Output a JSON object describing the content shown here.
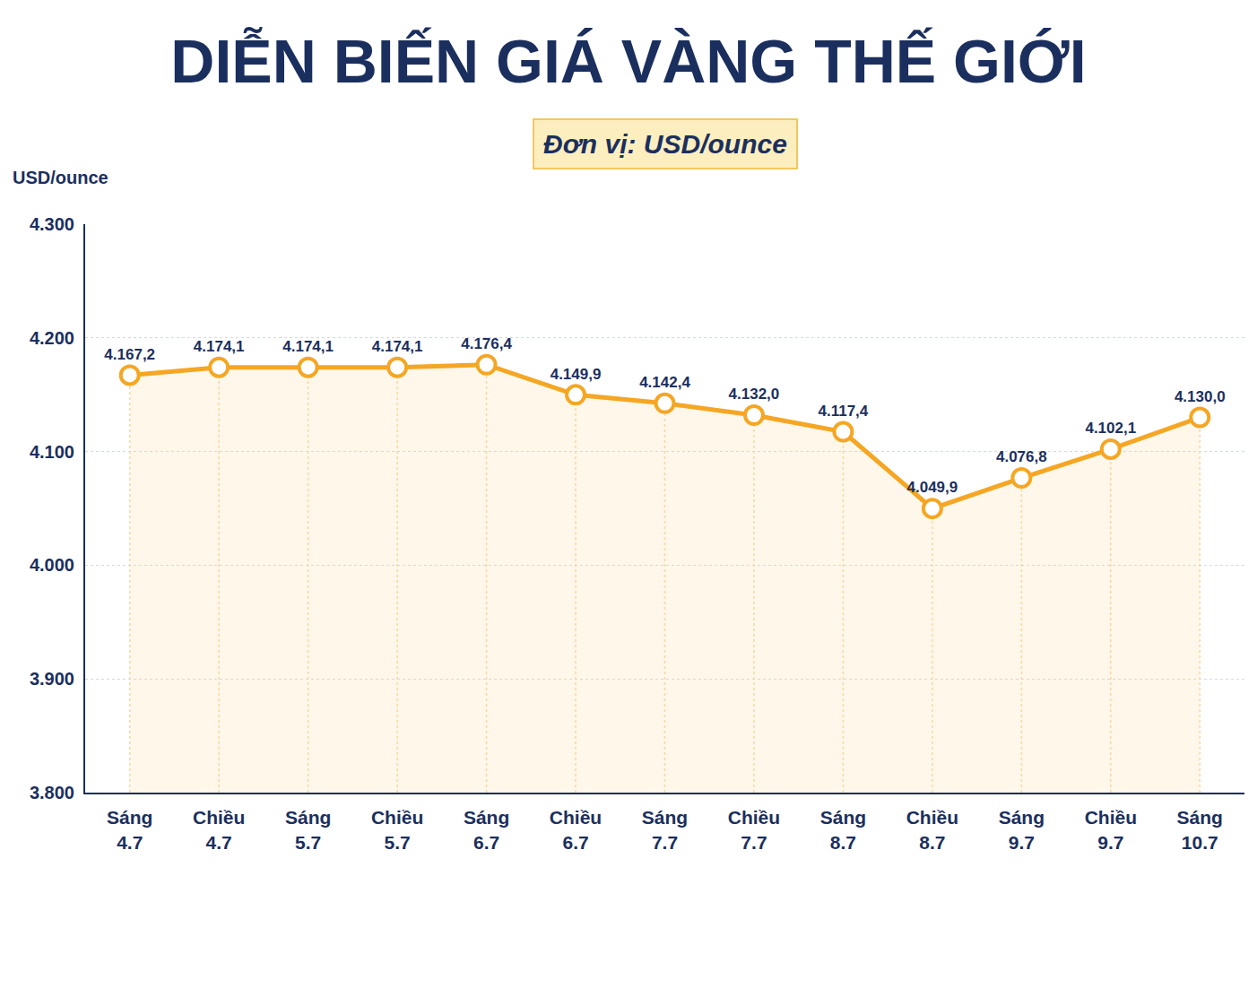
{
  "chart_data": {
    "type": "line",
    "title": "DIỄN BIẾN GIÁ VÀNG THẾ GIỚI",
    "subtitle": "Đơn vị: USD/ounce",
    "ylabel": "USD/ounce",
    "categories": [
      "Sáng 4.7",
      "Chiều 4.7",
      "Sáng 5.7",
      "Chiều 5.7",
      "Sáng 6.7",
      "Chiều 6.7",
      "Sáng 7.7",
      "Chiều 7.7",
      "Sáng 8.7",
      "Chiều 8.7",
      "Sáng 9.7",
      "Chiều 9.7",
      "Sáng 10.7"
    ],
    "values": [
      4167.2,
      4174.1,
      4174.1,
      4174.1,
      4176.4,
      4149.9,
      4142.4,
      4132.0,
      4117.4,
      4049.9,
      4076.8,
      4102.1,
      4130.0
    ],
    "value_labels": [
      "4.167,2",
      "4.174,1",
      "4.174,1",
      "4.174,1",
      "4.176,4",
      "4.149,9",
      "4.142,4",
      "4.132,0",
      "4.117,4",
      "4.049,9",
      "4.076,8",
      "4.102,1",
      "4.130,0"
    ],
    "color": "#f5a623",
    "marker": "circle",
    "line_style": "solid",
    "ylim": [
      3800,
      4300
    ],
    "yticks": [
      {
        "value": 3800,
        "label": "3.800"
      },
      {
        "value": 3900,
        "label": "3.900"
      },
      {
        "value": 4000,
        "label": "4.000"
      },
      {
        "value": 4100,
        "label": "4.100"
      },
      {
        "value": 4200,
        "label": "4.200"
      },
      {
        "value": 4300,
        "label": "4.300"
      }
    ],
    "grid": true,
    "data_labels": true
  }
}
